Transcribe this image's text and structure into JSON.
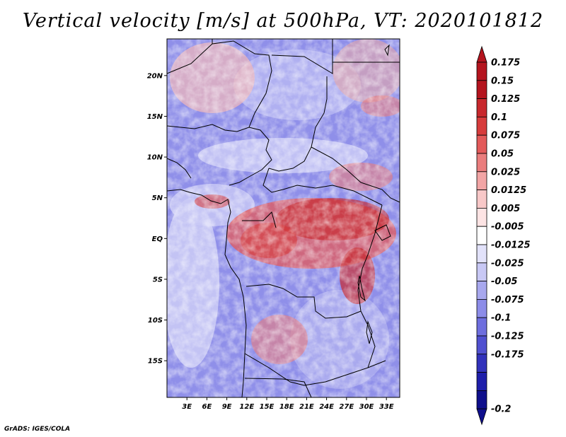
{
  "title": "Vertical velocity [m/s] at 500hPa, VT: 2020101812",
  "credit": "GrADS: IGES/COLA",
  "map": {
    "variable": "Vertical velocity",
    "units": "m/s",
    "level": "500hPa",
    "valid_time": "2020101812",
    "lon_range_deg": [
      0,
      35
    ],
    "lat_range_deg": [
      -19.5,
      24.5
    ],
    "lat_ticks": [
      {
        "label": "20N",
        "value": 20
      },
      {
        "label": "15N",
        "value": 15
      },
      {
        "label": "10N",
        "value": 10
      },
      {
        "label": "5N",
        "value": 5
      },
      {
        "label": "EQ",
        "value": 0
      },
      {
        "label": "5S",
        "value": -5
      },
      {
        "label": "10S",
        "value": -10
      },
      {
        "label": "15S",
        "value": -15
      }
    ],
    "lon_ticks": [
      {
        "label": "3E",
        "value": 3
      },
      {
        "label": "6E",
        "value": 6
      },
      {
        "label": "9E",
        "value": 9
      },
      {
        "label": "12E",
        "value": 12
      },
      {
        "label": "15E",
        "value": 15
      },
      {
        "label": "18E",
        "value": 18
      },
      {
        "label": "21E",
        "value": 21
      },
      {
        "label": "24E",
        "value": 24
      },
      {
        "label": "27E",
        "value": 27
      },
      {
        "label": "30E",
        "value": 30
      },
      {
        "label": "33E",
        "value": 33
      }
    ]
  },
  "colorbar": {
    "levels": [
      "0.175",
      "0.15",
      "0.125",
      "0.1",
      "0.075",
      "0.05",
      "0.025",
      "0.0125",
      "0.005",
      "-0.005",
      "-0.0125",
      "-0.025",
      "-0.05",
      "-0.075",
      "-0.1",
      "-0.125",
      "-0.175",
      "-0.2"
    ],
    "colors": [
      "#b4141e",
      "#b4141e",
      "#c8282d",
      "#d73c3c",
      "#e35a5a",
      "#ea7d7d",
      "#f2a5a5",
      "#f8c8c8",
      "#fde4e4",
      "#ffffff",
      "#e2e2fa",
      "#c8c8f5",
      "#a8a8ee",
      "#8c8ce8",
      "#6e6ede",
      "#5050d0",
      "#3232bb",
      "#1e1eaa",
      "#0f0f8c"
    ],
    "top_color": "#b4141e",
    "bottom_color": "#0f0f8c"
  }
}
